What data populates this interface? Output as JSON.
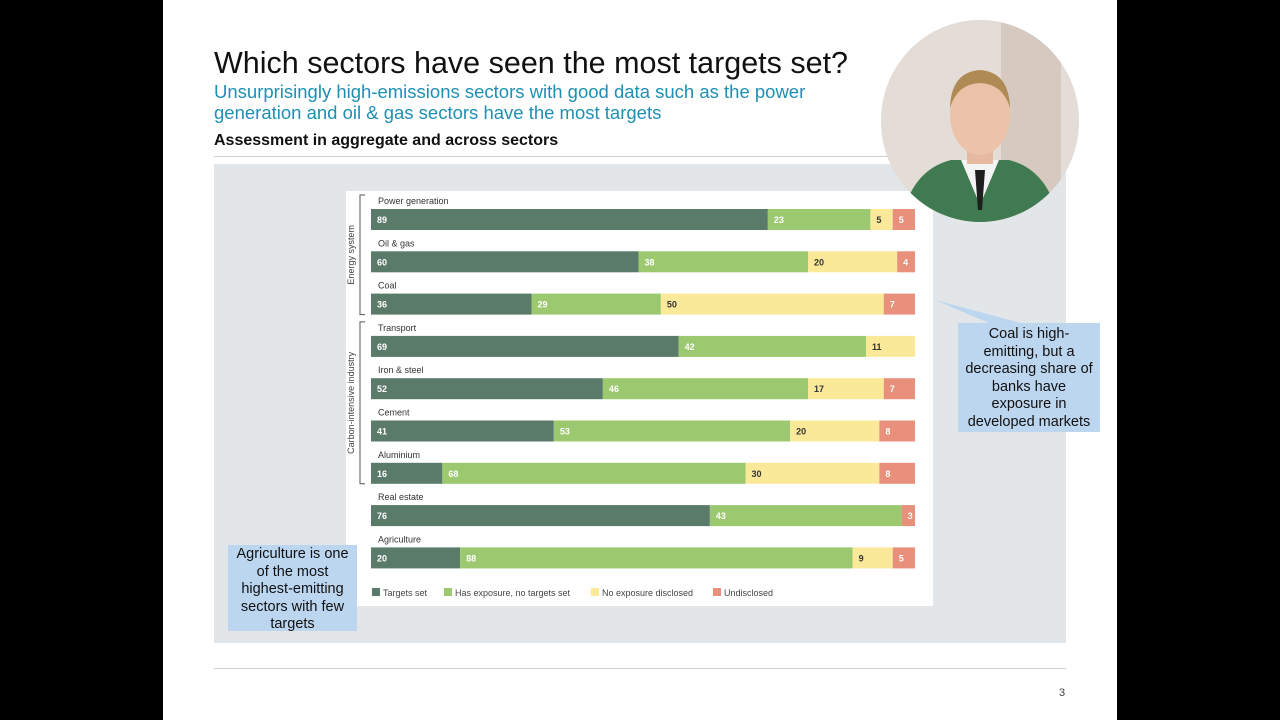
{
  "slide": {
    "title": "Which sectors have seen the most targets set?",
    "subtitle": "Unsurprisingly high-emissions sectors with good data such as the power generation and oil & gas sectors have the most targets",
    "section_heading": "Assessment in aggregate and across sectors",
    "page_number": "3"
  },
  "callouts": {
    "coal": "Coal is high-emitting, but a decreasing share of banks have exposure in developed markets",
    "agriculture": "Agriculture is one of the most highest-emitting sectors with few targets"
  },
  "colors": {
    "targets_set": "#5a7a6a",
    "has_exposure": "#9cc96f",
    "no_exposure": "#fbe99a",
    "undisclosed": "#e8907b",
    "subtitle": "#1f8fb3",
    "callout": "#bcd6f0",
    "panel": "#e2e6e9"
  },
  "chart_data": {
    "type": "bar",
    "orientation": "horizontal",
    "stacked": true,
    "categories": [
      "Power generation",
      "Oil & gas",
      "Coal",
      "Transport",
      "Iron & steel",
      "Cement",
      "Aluminium",
      "Real estate",
      "Agriculture"
    ],
    "groups": [
      {
        "label": "Energy system",
        "categories": [
          "Power generation",
          "Oil & gas",
          "Coal"
        ]
      },
      {
        "label": "Carbon-intensive industry",
        "categories": [
          "Transport",
          "Iron & steel",
          "Cement",
          "Aluminium"
        ]
      }
    ],
    "series": [
      {
        "name": "Targets set",
        "color": "#5a7a6a",
        "label_color": "#ffffff",
        "values": [
          89,
          60,
          36,
          69,
          52,
          41,
          16,
          76,
          20
        ]
      },
      {
        "name": "Has exposure, no targets set",
        "color": "#9cc96f",
        "label_color": "#ffffff",
        "values": [
          23,
          38,
          29,
          42,
          46,
          53,
          68,
          43,
          88
        ]
      },
      {
        "name": "No exposure disclosed",
        "color": "#fbe99a",
        "label_color": "#333333",
        "values": [
          5,
          20,
          50,
          11,
          17,
          20,
          30,
          0,
          9
        ]
      },
      {
        "name": "Undisclosed",
        "color": "#e8907b",
        "label_color": "#ffffff",
        "values": [
          5,
          4,
          7,
          0,
          7,
          8,
          8,
          3,
          5
        ]
      }
    ],
    "legend_position": "bottom-left"
  }
}
